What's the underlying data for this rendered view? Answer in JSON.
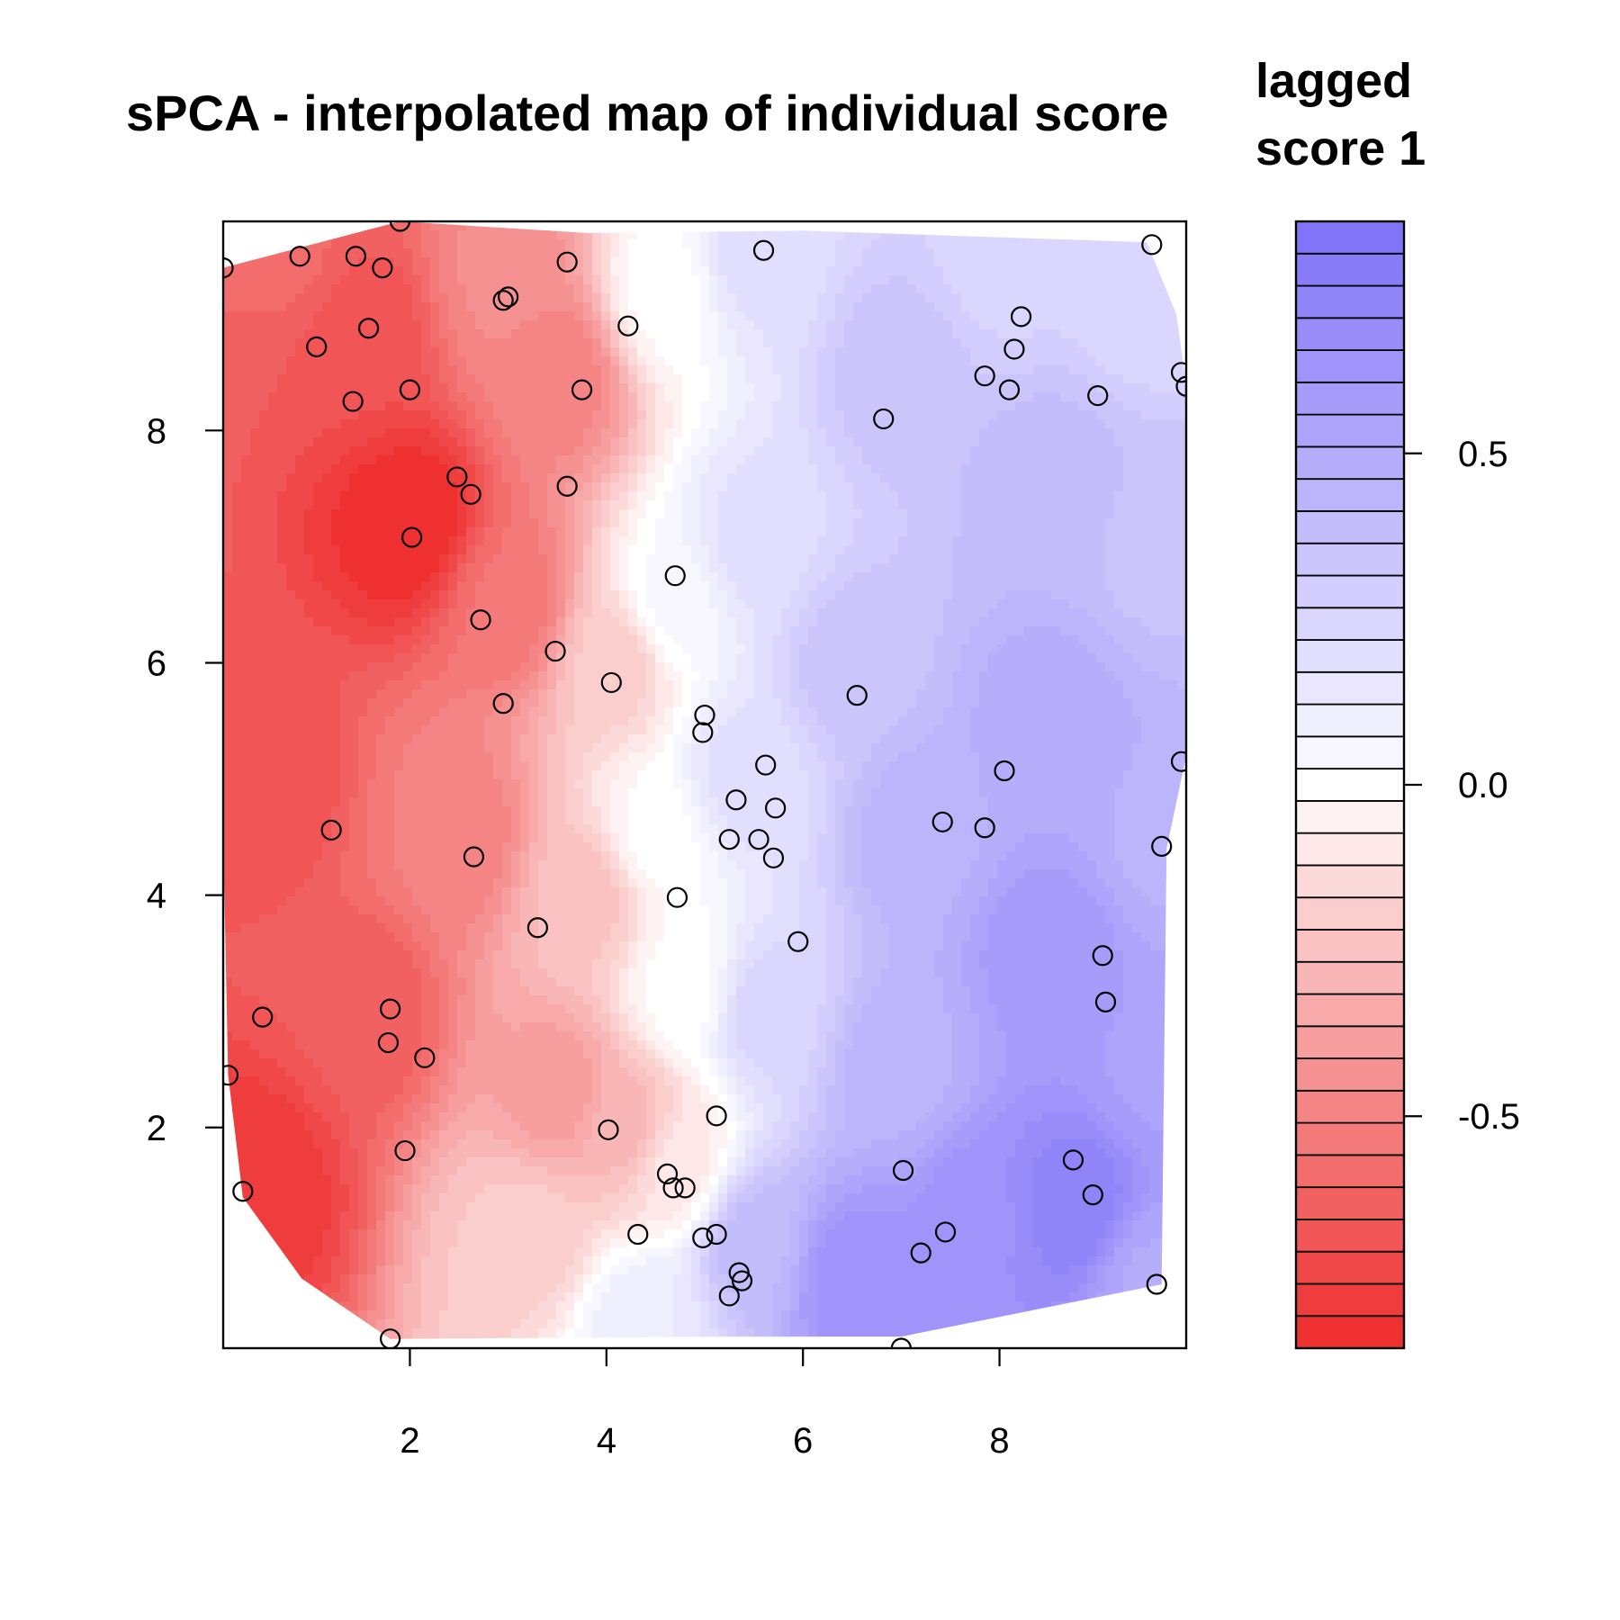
{
  "chart_data": {
    "type": "heatmap",
    "title": "sPCA - interpolated map of individual score",
    "legend_title_lines": [
      "lagged",
      "score 1"
    ],
    "xlabel": "",
    "ylabel": "",
    "xlim": [
      0.1,
      9.9
    ],
    "ylim": [
      0.1,
      9.8
    ],
    "x_ticks": [
      2,
      4,
      6,
      8
    ],
    "y_ticks": [
      2,
      4,
      6,
      8
    ],
    "color_scale": {
      "min": -0.85,
      "max": 0.85,
      "negative_color": "#ee2a2a",
      "neutral_color": "#ffffff",
      "positive_color": "#7f6ff8",
      "bands": 35,
      "ticks": [
        -0.5,
        0.0,
        0.5
      ]
    },
    "points": [
      {
        "x": 0.1,
        "y": 9.4
      },
      {
        "x": 0.88,
        "y": 9.5
      },
      {
        "x": 1.45,
        "y": 9.5
      },
      {
        "x": 1.72,
        "y": 9.4
      },
      {
        "x": 1.9,
        "y": 9.8
      },
      {
        "x": 3.6,
        "y": 9.45
      },
      {
        "x": 5.6,
        "y": 9.55
      },
      {
        "x": 9.55,
        "y": 9.6
      },
      {
        "x": 2.95,
        "y": 9.12
      },
      {
        "x": 3.0,
        "y": 9.15
      },
      {
        "x": 4.22,
        "y": 8.9
      },
      {
        "x": 8.22,
        "y": 8.98
      },
      {
        "x": 1.05,
        "y": 8.72
      },
      {
        "x": 1.58,
        "y": 8.88
      },
      {
        "x": 8.15,
        "y": 8.7
      },
      {
        "x": 7.85,
        "y": 8.47
      },
      {
        "x": 9.85,
        "y": 8.5
      },
      {
        "x": 9.9,
        "y": 8.38
      },
      {
        "x": 2.0,
        "y": 8.35
      },
      {
        "x": 3.75,
        "y": 8.35
      },
      {
        "x": 1.42,
        "y": 8.25
      },
      {
        "x": 8.1,
        "y": 8.35
      },
      {
        "x": 9.0,
        "y": 8.3
      },
      {
        "x": 6.82,
        "y": 8.1
      },
      {
        "x": 2.48,
        "y": 7.6
      },
      {
        "x": 2.62,
        "y": 7.45
      },
      {
        "x": 3.6,
        "y": 7.52
      },
      {
        "x": 2.02,
        "y": 7.08
      },
      {
        "x": 4.7,
        "y": 6.75
      },
      {
        "x": 2.72,
        "y": 6.37
      },
      {
        "x": 3.48,
        "y": 6.1
      },
      {
        "x": 4.05,
        "y": 5.83
      },
      {
        "x": 6.55,
        "y": 5.72
      },
      {
        "x": 2.95,
        "y": 5.65
      },
      {
        "x": 5.0,
        "y": 5.55
      },
      {
        "x": 4.98,
        "y": 5.4
      },
      {
        "x": 5.62,
        "y": 5.12
      },
      {
        "x": 9.85,
        "y": 5.15
      },
      {
        "x": 8.05,
        "y": 5.07
      },
      {
        "x": 5.32,
        "y": 4.82
      },
      {
        "x": 5.72,
        "y": 4.75
      },
      {
        "x": 7.42,
        "y": 4.63
      },
      {
        "x": 7.85,
        "y": 4.58
      },
      {
        "x": 1.2,
        "y": 4.56
      },
      {
        "x": 5.25,
        "y": 4.48
      },
      {
        "x": 5.55,
        "y": 4.48
      },
      {
        "x": 9.65,
        "y": 4.42
      },
      {
        "x": 2.65,
        "y": 4.33
      },
      {
        "x": 5.7,
        "y": 4.32
      },
      {
        "x": 4.72,
        "y": 3.98
      },
      {
        "x": 3.3,
        "y": 3.72
      },
      {
        "x": 5.95,
        "y": 3.6
      },
      {
        "x": 9.05,
        "y": 3.48
      },
      {
        "x": 9.08,
        "y": 3.08
      },
      {
        "x": 1.8,
        "y": 3.02
      },
      {
        "x": 0.5,
        "y": 2.95
      },
      {
        "x": 1.78,
        "y": 2.73
      },
      {
        "x": 2.15,
        "y": 2.6
      },
      {
        "x": 0.15,
        "y": 2.45
      },
      {
        "x": 5.12,
        "y": 2.1
      },
      {
        "x": 4.02,
        "y": 1.98
      },
      {
        "x": 1.95,
        "y": 1.8
      },
      {
        "x": 8.75,
        "y": 1.72
      },
      {
        "x": 7.02,
        "y": 1.63
      },
      {
        "x": 4.62,
        "y": 1.6
      },
      {
        "x": 4.68,
        "y": 1.48
      },
      {
        "x": 4.8,
        "y": 1.48
      },
      {
        "x": 0.3,
        "y": 1.45
      },
      {
        "x": 8.95,
        "y": 1.42
      },
      {
        "x": 4.32,
        "y": 1.08
      },
      {
        "x": 4.98,
        "y": 1.05
      },
      {
        "x": 5.12,
        "y": 1.08
      },
      {
        "x": 7.45,
        "y": 1.1
      },
      {
        "x": 7.2,
        "y": 0.92
      },
      {
        "x": 5.35,
        "y": 0.75
      },
      {
        "x": 5.38,
        "y": 0.68
      },
      {
        "x": 9.6,
        "y": 0.65
      },
      {
        "x": 5.25,
        "y": 0.55
      },
      {
        "x": 1.8,
        "y": 0.18
      },
      {
        "x": 7.0,
        "y": 0.1
      }
    ],
    "centers": [
      {
        "x": 2.0,
        "y": 7.2,
        "v": -0.85
      },
      {
        "x": 0.4,
        "y": 1.5,
        "v": -0.8
      },
      {
        "x": 1.5,
        "y": 8.8,
        "v": -0.7
      },
      {
        "x": 0.5,
        "y": 5.0,
        "v": -0.7
      },
      {
        "x": 1.5,
        "y": 3.0,
        "v": -0.65
      },
      {
        "x": 3.0,
        "y": 6.5,
        "v": -0.55
      },
      {
        "x": 3.5,
        "y": 8.5,
        "v": -0.5
      },
      {
        "x": 2.5,
        "y": 4.5,
        "v": -0.5
      },
      {
        "x": 3.5,
        "y": 2.3,
        "v": -0.4
      },
      {
        "x": 3.8,
        "y": 4.0,
        "v": -0.25
      },
      {
        "x": 4.1,
        "y": 6.0,
        "v": -0.2
      },
      {
        "x": 4.2,
        "y": 2.0,
        "v": -0.3
      },
      {
        "x": 3.2,
        "y": 1.1,
        "v": -0.2
      },
      {
        "x": 4.6,
        "y": 9.2,
        "v": 0.0
      },
      {
        "x": 4.7,
        "y": 6.5,
        "v": 0.05
      },
      {
        "x": 4.5,
        "y": 4.5,
        "v": 0.0
      },
      {
        "x": 4.8,
        "y": 3.2,
        "v": 0.0
      },
      {
        "x": 4.7,
        "y": 1.7,
        "v": -0.1
      },
      {
        "x": 4.4,
        "y": 0.3,
        "v": 0.12
      },
      {
        "x": 5.5,
        "y": 9.5,
        "v": 0.2
      },
      {
        "x": 5.5,
        "y": 7.0,
        "v": 0.2
      },
      {
        "x": 5.4,
        "y": 5.0,
        "v": 0.2
      },
      {
        "x": 5.6,
        "y": 3.0,
        "v": 0.25
      },
      {
        "x": 5.5,
        "y": 1.0,
        "v": 0.4
      },
      {
        "x": 6.5,
        "y": 0.7,
        "v": 0.65
      },
      {
        "x": 7.0,
        "y": 8.5,
        "v": 0.35
      },
      {
        "x": 6.5,
        "y": 6.0,
        "v": 0.35
      },
      {
        "x": 7.2,
        "y": 4.5,
        "v": 0.45
      },
      {
        "x": 7.0,
        "y": 2.5,
        "v": 0.45
      },
      {
        "x": 8.8,
        "y": 1.3,
        "v": 0.75
      },
      {
        "x": 7.8,
        "y": 1.2,
        "v": 0.65
      },
      {
        "x": 8.5,
        "y": 3.5,
        "v": 0.6
      },
      {
        "x": 8.5,
        "y": 5.5,
        "v": 0.5
      },
      {
        "x": 9.7,
        "y": 4.5,
        "v": 0.45
      },
      {
        "x": 8.5,
        "y": 7.5,
        "v": 0.4
      },
      {
        "x": 8.0,
        "y": 9.5,
        "v": 0.25
      },
      {
        "x": 9.5,
        "y": 9.3,
        "v": 0.22
      },
      {
        "x": 9.6,
        "y": 7.0,
        "v": 0.35
      },
      {
        "x": 9.6,
        "y": 2.5,
        "v": 0.55
      },
      {
        "x": 9.5,
        "y": 0.7,
        "v": 0.5
      },
      {
        "x": 3.0,
        "y": 9.3,
        "v": -0.45
      },
      {
        "x": 0.8,
        "y": 9.5,
        "v": -0.6
      }
    ],
    "domain_outline": [
      {
        "x": 0.1,
        "y": 9.4
      },
      {
        "x": 1.9,
        "y": 9.8
      },
      {
        "x": 3.8,
        "y": 9.7
      },
      {
        "x": 6.0,
        "y": 9.72
      },
      {
        "x": 9.5,
        "y": 9.62
      },
      {
        "x": 9.8,
        "y": 9.0
      },
      {
        "x": 9.9,
        "y": 8.4
      },
      {
        "x": 9.9,
        "y": 5.2
      },
      {
        "x": 9.7,
        "y": 4.4
      },
      {
        "x": 9.65,
        "y": 0.65
      },
      {
        "x": 7.0,
        "y": 0.2
      },
      {
        "x": 5.3,
        "y": 0.2
      },
      {
        "x": 1.8,
        "y": 0.18
      },
      {
        "x": 0.9,
        "y": 0.7
      },
      {
        "x": 0.3,
        "y": 1.4
      },
      {
        "x": 0.15,
        "y": 2.45
      },
      {
        "x": 0.1,
        "y": 4.5
      }
    ]
  }
}
